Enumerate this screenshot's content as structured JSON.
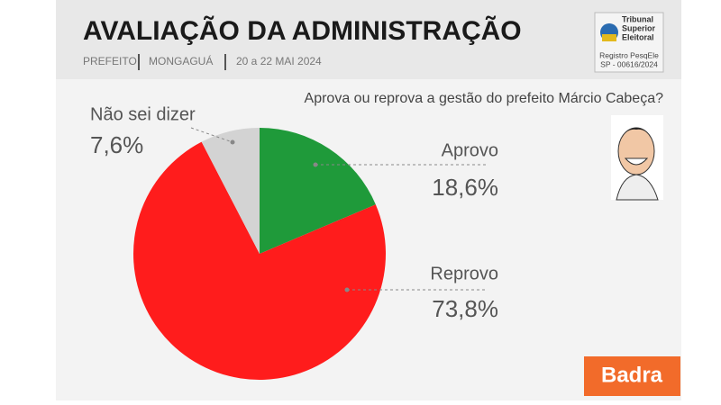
{
  "chart_data": {
    "type": "pie",
    "title": "AVALIAÇÃO DA ADMINISTRAÇÃO",
    "subtitle": [
      "PREFEITO",
      "MONGAGUÁ",
      "20 a 22 MAI 2024"
    ],
    "question": "Aprova ou reprova a gestão do prefeito Márcio Cabeça?",
    "categories": [
      "Aprovo",
      "Reprovo",
      "Não sei dizer"
    ],
    "values": [
      18.6,
      73.8,
      7.6
    ],
    "value_labels": [
      "18,6%",
      "73,8%",
      "7,6%"
    ],
    "colors": [
      "#1f9a3a",
      "#ff1c1c",
      "#d3d3d3"
    ],
    "registry": {
      "lines": [
        "Tribunal",
        "Superior",
        "Eleitoral"
      ],
      "code": [
        "Registro PesqEle",
        "SP - 00616/2024"
      ]
    },
    "brand": "Badra"
  }
}
